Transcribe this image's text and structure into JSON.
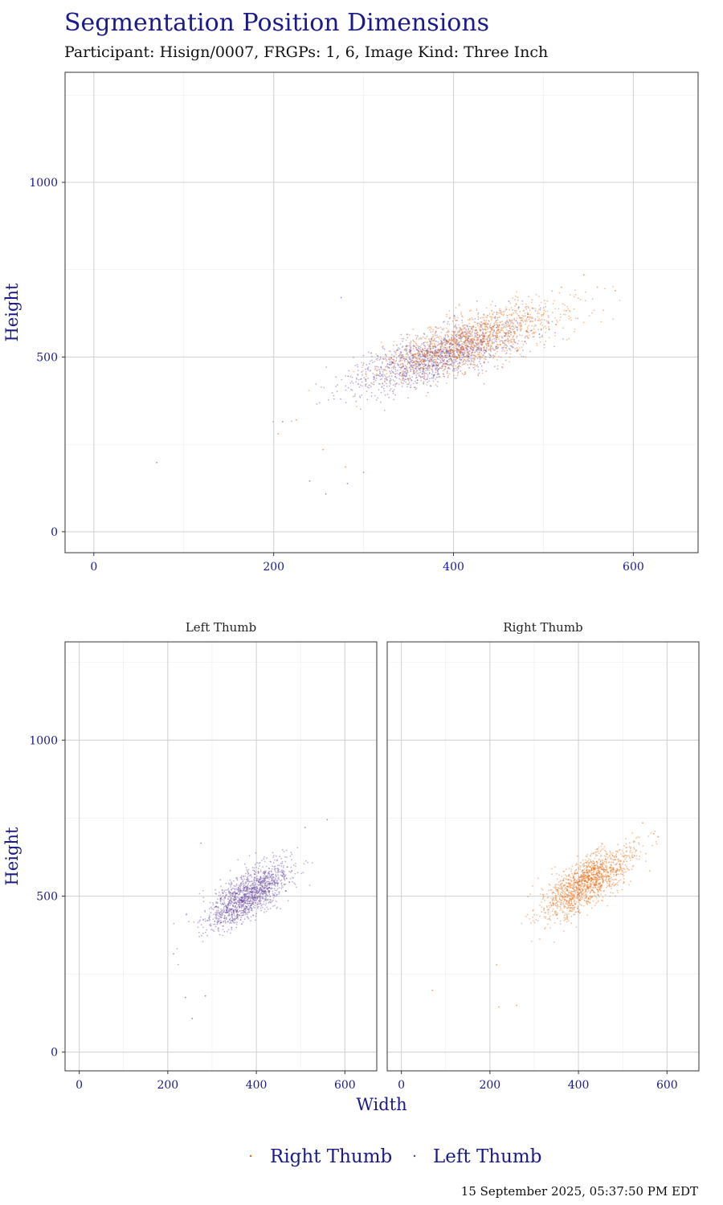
{
  "title": "Segmentation Position Dimensions",
  "subtitle": "Participant: Hisign/0007, FRGPs: 1, 6, Image Kind: Three Inch",
  "caption": "15 September 2025, 05:37:50 PM EDT",
  "colors": {
    "left_thumb": "#5e3c99",
    "right_thumb": "#e66101",
    "text": "#1a1a8c"
  },
  "legend": {
    "position": "bottom",
    "items": [
      {
        "label": "Right Thumb",
        "color": "#e66101"
      },
      {
        "label": "Left Thumb",
        "color": "#5e3c99"
      }
    ]
  },
  "chart_data": [
    {
      "type": "scatter",
      "panel": "combined",
      "title": "",
      "xlabel": "",
      "ylabel": "Height",
      "xlim": [
        -32,
        672
      ],
      "ylim": [
        -60,
        1315
      ],
      "x_ticks": [
        0,
        200,
        400,
        600
      ],
      "y_ticks": [
        0,
        500,
        1000
      ],
      "grid": true,
      "series": [
        {
          "name": "Left Thumb",
          "color": "#5e3c99",
          "center": [
            380,
            500
          ],
          "spread": [
            48,
            52
          ],
          "correlation": 0.72,
          "n": 1400,
          "outliers": [
            [
              70,
              198
            ],
            [
              258,
              108
            ],
            [
              240,
              145
            ],
            [
              210,
              315
            ],
            [
              282,
              138
            ],
            [
              300,
              170
            ],
            [
              275,
              670
            ]
          ]
        },
        {
          "name": "Right Thumb",
          "color": "#e66101",
          "center": [
            420,
            545
          ],
          "spread": [
            50,
            55
          ],
          "correlation": 0.72,
          "n": 1400,
          "outliers": [
            [
              205,
              280
            ],
            [
              225,
              320
            ],
            [
              255,
              235
            ],
            [
              280,
              185
            ],
            [
              545,
              735
            ],
            [
              560,
              700
            ],
            [
              580,
              690
            ],
            [
              520,
              700
            ]
          ]
        }
      ]
    },
    {
      "type": "scatter",
      "panel": "Left Thumb",
      "title": "Left Thumb",
      "xlabel": "Width",
      "ylabel": "Height",
      "xlim": [
        -32,
        672
      ],
      "ylim": [
        -60,
        1315
      ],
      "x_ticks": [
        0,
        200,
        400,
        600
      ],
      "y_ticks": [
        0,
        500,
        1000
      ],
      "grid": true,
      "series": [
        {
          "name": "Left Thumb",
          "color": "#5e3c99",
          "center": [
            380,
            500
          ],
          "spread": [
            48,
            52
          ],
          "correlation": 0.72,
          "n": 1400,
          "outliers": [
            [
              275,
              670
            ],
            [
              240,
              175
            ],
            [
              255,
              108
            ],
            [
              213,
              315
            ],
            [
              285,
              180
            ],
            [
              560,
              745
            ],
            [
              510,
              720
            ]
          ]
        }
      ]
    },
    {
      "type": "scatter",
      "panel": "Right Thumb",
      "title": "Right Thumb",
      "xlabel": "Width",
      "ylabel": "Height",
      "xlim": [
        -32,
        672
      ],
      "ylim": [
        -60,
        1315
      ],
      "x_ticks": [
        0,
        200,
        400,
        600
      ],
      "y_ticks": [
        0,
        500,
        1000
      ],
      "grid": true,
      "series": [
        {
          "name": "Right Thumb",
          "color": "#e66101",
          "center": [
            420,
            545
          ],
          "spread": [
            50,
            55
          ],
          "correlation": 0.72,
          "n": 1400,
          "outliers": [
            [
              70,
              198
            ],
            [
              215,
              280
            ],
            [
              220,
              145
            ],
            [
              260,
              150
            ],
            [
              545,
              735
            ],
            [
              570,
              700
            ],
            [
              580,
              690
            ]
          ]
        }
      ]
    }
  ]
}
